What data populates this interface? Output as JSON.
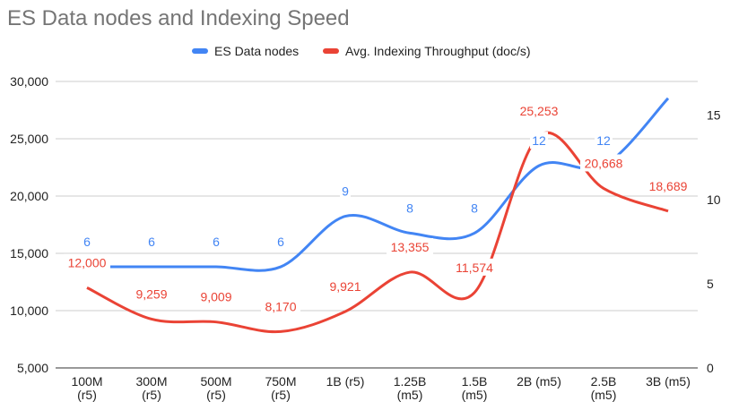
{
  "chart_data": {
    "type": "line",
    "title": "ES Data nodes and Indexing Speed",
    "categories": [
      "100M (r5)",
      "300M (r5)",
      "500M (r5)",
      "750M (r5)",
      "1B (r5)",
      "1.25B (m5)",
      "1.5B (m5)",
      "2B (m5)",
      "2.5B (m5)",
      "3B (m5)"
    ],
    "left_axis": {
      "ticks": [
        "5,000",
        "10,000",
        "15,000",
        "20,000",
        "25,000",
        "30,000"
      ],
      "min": 5000,
      "max": 30000
    },
    "right_axis": {
      "ticks": [
        "0",
        "5",
        "10",
        "15"
      ],
      "min": 0,
      "max": 17
    },
    "series": [
      {
        "name": "ES Data nodes",
        "axis": "right",
        "color": "#4285f4",
        "values": [
          6,
          6,
          6,
          6,
          9,
          8,
          8,
          12,
          12,
          16
        ],
        "labels": [
          "6",
          "6",
          "6",
          "6",
          "9",
          "8",
          "8",
          "12",
          "12",
          ""
        ]
      },
      {
        "name": "Avg. Indexing Throughput (doc/s)",
        "axis": "left",
        "color": "#ea4335",
        "values": [
          12000,
          9259,
          9009,
          8170,
          9921,
          13355,
          11574,
          25253,
          20668,
          18689
        ],
        "labels": [
          "12,000",
          "9,259",
          "9,009",
          "8,170",
          "9,921",
          "13,355",
          "11,574",
          "25,253",
          "20,668",
          "18,689"
        ]
      }
    ],
    "grid": true,
    "legend_position": "top"
  }
}
